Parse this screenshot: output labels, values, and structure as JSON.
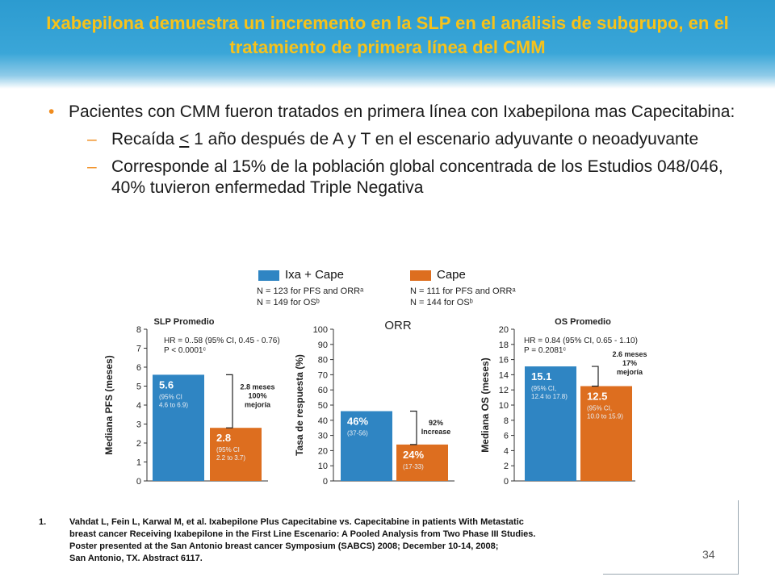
{
  "title": "Ixabepilona demuestra un incremento en la SLP en el análisis de subgrupo, en el tratamiento de primera línea del CMM",
  "bullets": {
    "main": "Pacientes con CMM fueron tratados en primera línea con Ixabepilona mas Capecitabina:",
    "sub1_a": "Recaída ",
    "sub1_u": "<",
    "sub1_b": " 1 año después de A y T en el escenario adyuvante o neoadyuvante",
    "sub2": "Corresponde al 15% de la población global concentrada de los Estudios 048/046, 40% tuvieron enfermedad Triple Negativa"
  },
  "legend": {
    "ixa_label": "Ixa + Cape",
    "cape_label": "Cape",
    "ixa_note": "N = 123 for PFS and ORRᵃ\nN = 149 for OSᵇ",
    "cape_note": "N = 111 for PFS and ORRᵃ\nN = 144 for OSᵇ"
  },
  "colors": {
    "ixa": "#2f85c3",
    "cape": "#dd6e1f",
    "axis": "#333333"
  },
  "chart_data": [
    {
      "type": "bar",
      "title": "SLP Promedio",
      "ylabel": "Mediana PFS (meses)",
      "ylim": [
        0,
        8
      ],
      "yticks": [
        0,
        1,
        2,
        3,
        4,
        5,
        6,
        7,
        8
      ],
      "series": [
        {
          "name": "Ixa + Cape",
          "value": 5.6,
          "value_label": "5.6",
          "ci_label": "(95% CI\n4.6 to 6.9)"
        },
        {
          "name": "Cape",
          "value": 2.8,
          "value_label": "2.8",
          "ci_label": "(95% CI\n2.2 to 3.7)"
        }
      ],
      "stats": "HR = 0..58 (95% CI, 0.45 - 0.76)\nP  < 0.0001ᶜ",
      "annotation": "2.8 meses\n\n100%\nmejoría"
    },
    {
      "type": "bar",
      "title": "ORR",
      "ylabel": "Tasa de respuesta (%)",
      "ylim": [
        0,
        100
      ],
      "yticks": [
        0,
        10,
        20,
        30,
        40,
        50,
        60,
        70,
        80,
        90,
        100
      ],
      "series": [
        {
          "name": "Ixa + Cape",
          "value": 46,
          "value_label": "46%",
          "ci_label": "(37-56)"
        },
        {
          "name": "Cape",
          "value": 24,
          "value_label": "24%",
          "ci_label": "(17-33)"
        }
      ],
      "annotation": "92%\nIncrease"
    },
    {
      "type": "bar",
      "title": "OS Promedio",
      "ylabel": "Mediana OS (meses)",
      "ylim": [
        0,
        20
      ],
      "yticks": [
        0,
        2,
        4,
        6,
        8,
        10,
        12,
        14,
        16,
        18,
        20
      ],
      "series": [
        {
          "name": "Ixa + Cape",
          "value": 15.1,
          "value_label": "15.1",
          "ci_label": "(95% CI,\n12.4 to 17.8)"
        },
        {
          "name": "Cape",
          "value": 12.5,
          "value_label": "12.5",
          "ci_label": "(95% CI,\n10.0 to 15.9)"
        }
      ],
      "stats": "HR = 0.84 (95% CI, 0.65 - 1.10)\nP = 0.2081ᶜ",
      "annotation": "2.6 meses\n17%\nmejoría"
    }
  ],
  "reference": {
    "number": "1.",
    "lines": [
      "Vahdat L, Fein L, Karwal M, et al. Ixabepilone Plus Capecitabine vs. Capecitabine in patients With Metastatic",
      "breast cancer Receiving Ixabepilone in the First Line Escenario: A Pooled Analysis  from Two Phase III Studies.",
      "Poster presented at the San Antonio  breast cancer Symposium (SABCS) 2008; December 10-14, 2008;",
      "San Antonio,  TX. Abstract 6117."
    ]
  },
  "page_number": "34"
}
